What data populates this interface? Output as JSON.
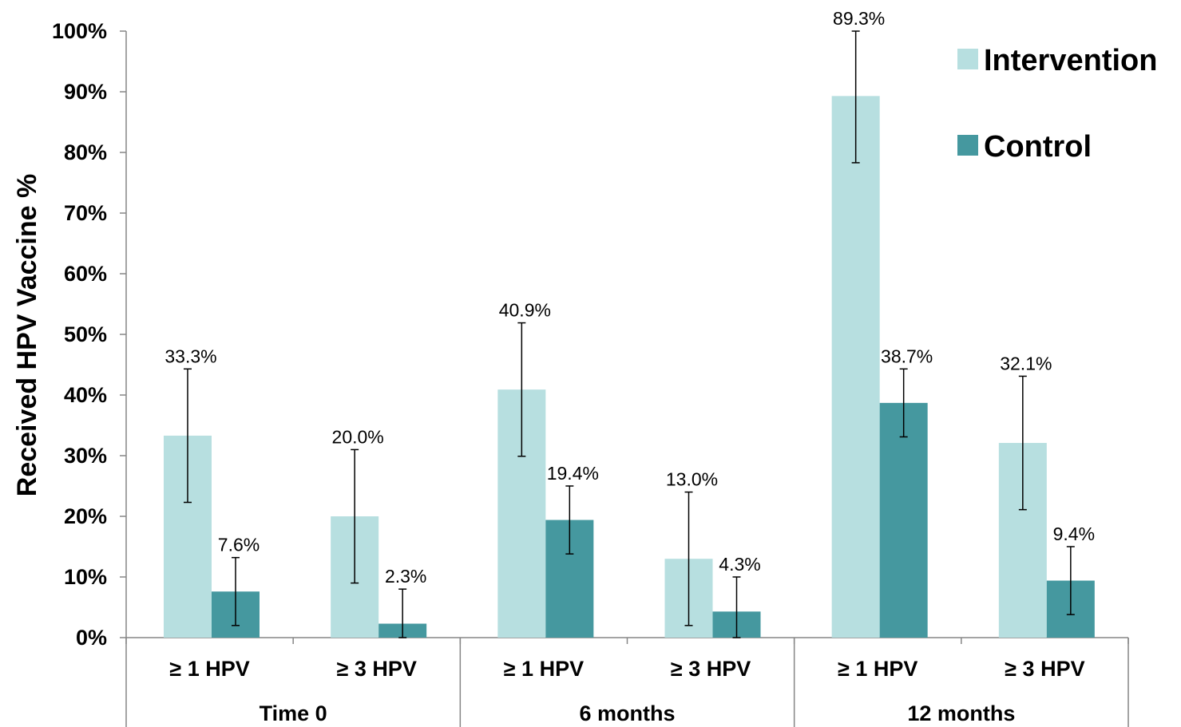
{
  "chart_data": {
    "type": "bar",
    "ylabel": "Received HPV Vaccine %",
    "xlabel": "",
    "ylim": [
      0,
      100
    ],
    "y_ticks": [
      "0%",
      "10%",
      "20%",
      "30%",
      "40%",
      "50%",
      "60%",
      "70%",
      "80%",
      "90%",
      "100%"
    ],
    "y_tick_values": [
      0,
      10,
      20,
      30,
      40,
      50,
      60,
      70,
      80,
      90,
      100
    ],
    "categories": [
      "≥ 1 HPV",
      "≥ 3 HPV",
      "≥ 1 HPV",
      "≥ 3 HPV",
      "≥ 1 HPV",
      "≥ 3 HPV"
    ],
    "groups": [
      {
        "label": "Time 0",
        "span": 2
      },
      {
        "label": "6 months",
        "span": 2
      },
      {
        "label": "12 months",
        "span": 2
      }
    ],
    "series": [
      {
        "name": "Intervention",
        "color": "#b7dfe0",
        "values": [
          33.3,
          20.0,
          40.9,
          13.0,
          89.3,
          32.1
        ],
        "labels": [
          "33.3%",
          "20.0%",
          "40.9%",
          "13.0%",
          "89.3%",
          "32.1%"
        ],
        "error_low": [
          22.3,
          9.0,
          29.9,
          2.0,
          78.3,
          21.1
        ],
        "error_high": [
          44.3,
          31.0,
          51.9,
          24.0,
          100.0,
          43.1
        ]
      },
      {
        "name": "Control",
        "color": "#45989f",
        "values": [
          7.6,
          2.3,
          19.4,
          4.3,
          38.7,
          9.4
        ],
        "labels": [
          "7.6%",
          "2.3%",
          "19.4%",
          "4.3%",
          "38.7%",
          "9.4%"
        ],
        "error_low": [
          2.0,
          0.0,
          13.8,
          0.0,
          33.1,
          3.8
        ],
        "error_high": [
          13.2,
          8.0,
          25.0,
          10.0,
          44.3,
          15.0
        ]
      }
    ],
    "legend_position": "top-right",
    "grid": false
  }
}
